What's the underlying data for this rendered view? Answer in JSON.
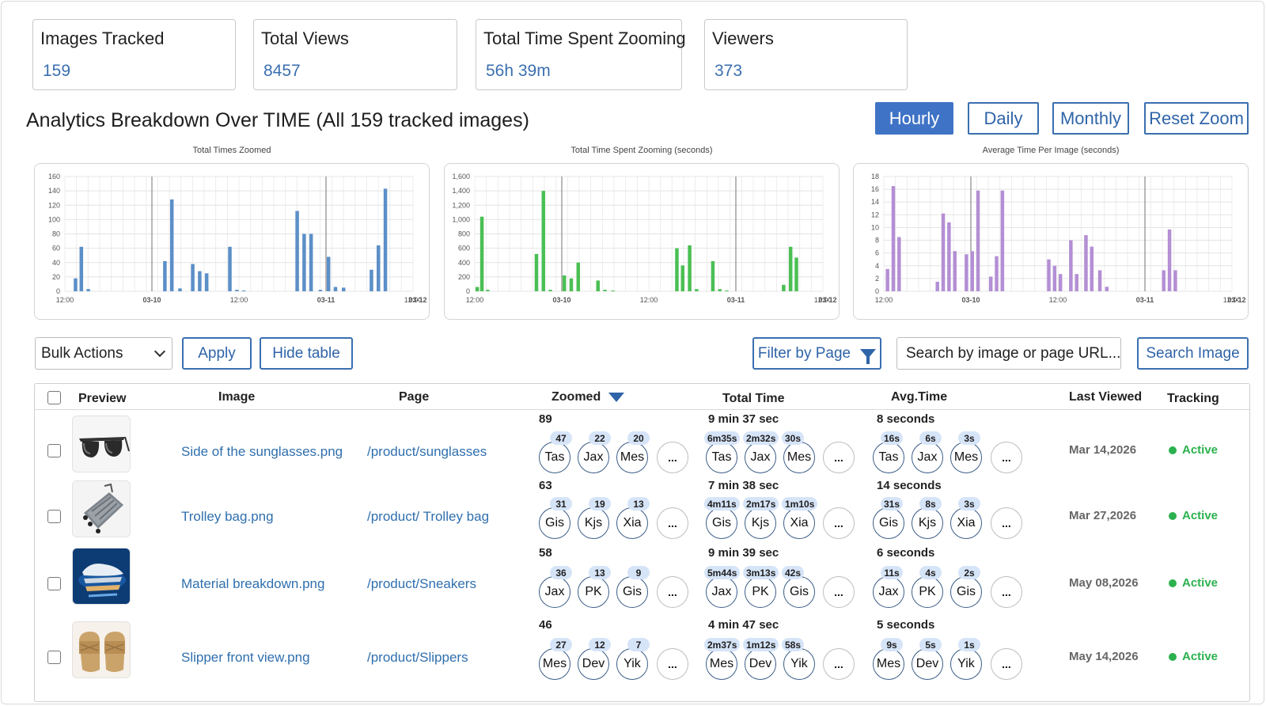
{
  "stats": [
    {
      "label": "Images Tracked",
      "value": "159"
    },
    {
      "label": "Total Views",
      "value": "8457"
    },
    {
      "label": "Total Time Spent Zooming",
      "value": "56h 39m"
    },
    {
      "label": "Viewers",
      "value": "373"
    }
  ],
  "section_title": "Analytics Breakdown Over TIME (All 159 tracked images)",
  "time_buttons": [
    "Hourly",
    "Daily",
    "Monthly",
    "Reset Zoom"
  ],
  "active_time_button": "Hourly",
  "chart_data": [
    {
      "type": "bar",
      "title": "Total Times Zoomed",
      "color": "#5b8fc7",
      "ylim": [
        0,
        160
      ],
      "yticks": [
        "0",
        "20",
        "40",
        "60",
        "80",
        "100",
        "120",
        "140",
        "160"
      ],
      "xticks": [
        "12:00",
        "03-10",
        "12:00",
        "03-11",
        "12:00",
        "03-12"
      ],
      "grid": true,
      "bars": [
        [
          0.9,
          18
        ],
        [
          1.4,
          62
        ],
        [
          2.0,
          3
        ],
        [
          8.6,
          42
        ],
        [
          9.2,
          128
        ],
        [
          9.9,
          4
        ],
        [
          11.0,
          38
        ],
        [
          11.6,
          28
        ],
        [
          12.2,
          25
        ],
        [
          14.2,
          62
        ],
        [
          14.8,
          2
        ],
        [
          15.4,
          1
        ],
        [
          20.0,
          112
        ],
        [
          20.6,
          80
        ],
        [
          21.2,
          80
        ],
        [
          22.0,
          2
        ],
        [
          22.7,
          48
        ],
        [
          23.3,
          6
        ],
        [
          24.0,
          5
        ],
        [
          26.4,
          30
        ],
        [
          27.0,
          64
        ],
        [
          27.6,
          143
        ]
      ]
    },
    {
      "type": "bar",
      "title": "Total Time Spent Zooming (seconds)",
      "color": "#4bbf54",
      "ylim": [
        0,
        1600
      ],
      "yticks": [
        "0",
        "200",
        "400",
        "600",
        "800",
        "1,000",
        "1,200",
        "1,400",
        "1,600"
      ],
      "xticks": [
        "12:00",
        "03-10",
        "12:00",
        "03-11",
        "12:00",
        "03-12"
      ],
      "grid": true,
      "bars": [
        [
          0.2,
          60
        ],
        [
          0.6,
          1040
        ],
        [
          1.1,
          20
        ],
        [
          5.3,
          520
        ],
        [
          5.9,
          1400
        ],
        [
          6.5,
          20
        ],
        [
          7.7,
          220
        ],
        [
          8.3,
          180
        ],
        [
          8.9,
          400
        ],
        [
          10.6,
          150
        ],
        [
          11.2,
          20
        ],
        [
          11.9,
          10
        ],
        [
          17.4,
          600
        ],
        [
          17.9,
          360
        ],
        [
          18.5,
          640
        ],
        [
          19.1,
          30
        ],
        [
          20.5,
          420
        ],
        [
          21.1,
          30
        ],
        [
          21.7,
          10
        ],
        [
          26.6,
          90
        ],
        [
          27.2,
          620
        ],
        [
          27.7,
          470
        ]
      ]
    },
    {
      "type": "bar",
      "title": "Average Time Per Image (seconds)",
      "color": "#b48fd4",
      "ylim": [
        0,
        18
      ],
      "yticks": [
        "0",
        "2",
        "4",
        "6",
        "8",
        "10",
        "12",
        "14",
        "16",
        "18"
      ],
      "xticks": [
        "12:00",
        "03-10",
        "12:00",
        "03-11",
        "12:00",
        "03-12"
      ],
      "grid": true,
      "bars": [
        [
          0.3,
          3.5
        ],
        [
          0.8,
          16.5
        ],
        [
          1.3,
          8.5
        ],
        [
          4.6,
          1.5
        ],
        [
          5.1,
          12.2
        ],
        [
          5.6,
          10.8
        ],
        [
          6.1,
          6.3
        ],
        [
          7.1,
          5.8
        ],
        [
          7.6,
          6.3
        ],
        [
          8.1,
          15.8
        ],
        [
          9.2,
          2.3
        ],
        [
          9.7,
          5.5
        ],
        [
          10.2,
          15.8
        ],
        [
          14.2,
          5.0
        ],
        [
          14.7,
          4.0
        ],
        [
          15.2,
          2.7
        ],
        [
          16.1,
          8.0
        ],
        [
          16.6,
          2.7
        ],
        [
          17.4,
          8.8
        ],
        [
          17.9,
          7.0
        ],
        [
          18.6,
          3.3
        ],
        [
          19.2,
          0.7
        ],
        [
          24.1,
          3.3
        ],
        [
          24.6,
          9.7
        ],
        [
          25.1,
          3.3
        ]
      ]
    }
  ],
  "controls": {
    "bulk_actions": "Bulk Actions",
    "apply": "Apply",
    "hide_table": "Hide table",
    "filter_by_page": "Filter by Page",
    "search_placeholder": "Search by image or page URL...",
    "search_button": "Search Image"
  },
  "table": {
    "headers": [
      "Preview",
      "Image",
      "Page",
      "Zoomed",
      "Total Time",
      "Avg.Time",
      "Last Viewed",
      "Tracking"
    ],
    "more_label": "...",
    "rows": [
      {
        "image": "Side of the sunglasses.png",
        "page": "/product/sunglasses",
        "thumb": "sunglasses",
        "zoomed_total": "89",
        "zoomed": [
          {
            "n": "Tas",
            "v": "47"
          },
          {
            "n": "Jax",
            "v": "22"
          },
          {
            "n": "Mes",
            "v": "20"
          }
        ],
        "total_time": "9 min 37 sec",
        "time": [
          {
            "n": "Tas",
            "v": "6m35s"
          },
          {
            "n": "Jax",
            "v": "2m32s"
          },
          {
            "n": "Mes",
            "v": "30s"
          }
        ],
        "avg_time": "8 seconds",
        "avg": [
          {
            "n": "Tas",
            "v": "16s"
          },
          {
            "n": "Jax",
            "v": "6s"
          },
          {
            "n": "Mes",
            "v": "3s"
          }
        ],
        "last_viewed": "Mar 14,2026",
        "status": "Active"
      },
      {
        "image": "Trolley bag.png",
        "page": "/product/ Trolley bag",
        "thumb": "trolley",
        "zoomed_total": "63",
        "zoomed": [
          {
            "n": "Gis",
            "v": "31"
          },
          {
            "n": "Kjs",
            "v": "19"
          },
          {
            "n": "Xia",
            "v": "13"
          }
        ],
        "total_time": "7 min 38 sec",
        "time": [
          {
            "n": "Gis",
            "v": "4m11s"
          },
          {
            "n": "Kjs",
            "v": "2m17s"
          },
          {
            "n": "Xia",
            "v": "1m10s"
          }
        ],
        "avg_time": "14 seconds",
        "avg": [
          {
            "n": "Gis",
            "v": "31s"
          },
          {
            "n": "Kjs",
            "v": "8s"
          },
          {
            "n": "Xia",
            "v": "3s"
          }
        ],
        "last_viewed": "Mar 27,2026",
        "status": "Active"
      },
      {
        "image": "Material breakdown.png",
        "page": "/product/Sneakers",
        "thumb": "sneakers",
        "zoomed_total": "58",
        "zoomed": [
          {
            "n": "Jax",
            "v": "36"
          },
          {
            "n": "PK",
            "v": "13"
          },
          {
            "n": "Gis",
            "v": "9"
          }
        ],
        "total_time": "9 min 39 sec",
        "time": [
          {
            "n": "Jax",
            "v": "5m44s"
          },
          {
            "n": "PK",
            "v": "3m13s"
          },
          {
            "n": "Gis",
            "v": "42s"
          }
        ],
        "avg_time": "6 seconds",
        "avg": [
          {
            "n": "Jax",
            "v": "11s"
          },
          {
            "n": "PK",
            "v": "4s"
          },
          {
            "n": "Gis",
            "v": "2s"
          }
        ],
        "last_viewed": "May 08,2026",
        "status": "Active"
      },
      {
        "image": "Slipper front view.png",
        "page": "/product/Slippers",
        "thumb": "slippers",
        "zoomed_total": "46",
        "zoomed": [
          {
            "n": "Mes",
            "v": "27"
          },
          {
            "n": "Dev",
            "v": "12"
          },
          {
            "n": "Yik",
            "v": "7"
          }
        ],
        "total_time": "4 min 47 sec",
        "time": [
          {
            "n": "Mes",
            "v": "2m37s"
          },
          {
            "n": "Dev",
            "v": "1m12s"
          },
          {
            "n": "Yik",
            "v": "58s"
          }
        ],
        "avg_time": "5 seconds",
        "avg": [
          {
            "n": "Mes",
            "v": "9s"
          },
          {
            "n": "Dev",
            "v": "5s"
          },
          {
            "n": "Yik",
            "v": "1s"
          }
        ],
        "last_viewed": "May 14,2026",
        "status": "Active"
      }
    ]
  }
}
